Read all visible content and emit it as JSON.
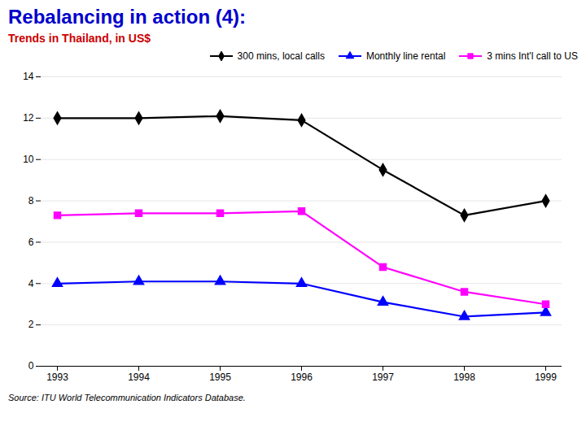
{
  "chart_data": {
    "type": "line",
    "title": "Rebalancing in action (4):",
    "subtitle": "Trends in Thailand, in US$",
    "caption": "Source: ITU World Telecommunication Indicators Database.",
    "title_color": "#0000CC",
    "subtitle_color": "#CC0000",
    "x": [
      1993,
      1994,
      1995,
      1996,
      1997,
      1998,
      1999
    ],
    "xlim": [
      1993,
      1999
    ],
    "xticks": [
      1993,
      1994,
      1995,
      1996,
      1997,
      1998,
      1999
    ],
    "ylim": [
      0,
      14
    ],
    "yticks": [
      0,
      2,
      4,
      6,
      8,
      10,
      12,
      14
    ],
    "grid": true,
    "legend": "upper right",
    "series": [
      {
        "name": "300 mins, local calls",
        "color": "#000000",
        "marker": "diamond",
        "values": [
          12.0,
          12.0,
          12.1,
          11.9,
          9.5,
          7.3,
          8.0
        ]
      },
      {
        "name": "Monthly line rental",
        "color": "#0000FF",
        "marker": "triangle",
        "values": [
          4.0,
          4.1,
          4.1,
          4.0,
          3.1,
          2.4,
          2.6
        ]
      },
      {
        "name": "3 mins Int'l call to US",
        "color": "#FF00FF",
        "marker": "square",
        "values": [
          7.3,
          7.4,
          7.4,
          7.5,
          4.8,
          3.6,
          3.0
        ]
      }
    ]
  }
}
